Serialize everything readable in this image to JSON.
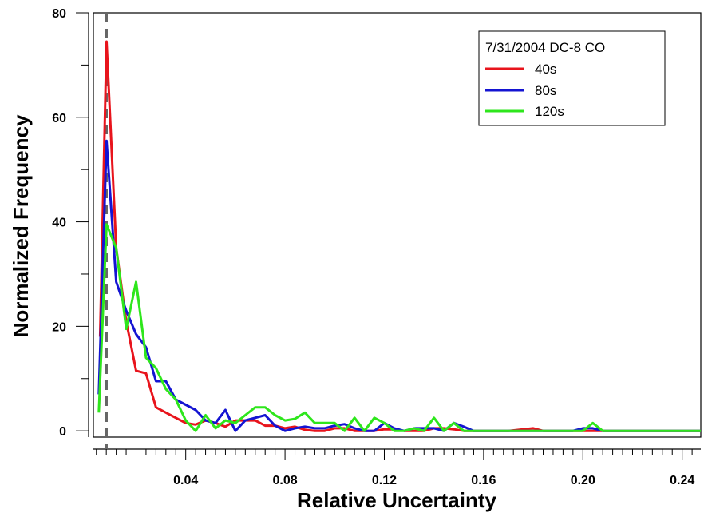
{
  "chart_data": {
    "type": "line",
    "xlabel": "Relative Uncertainty",
    "ylabel": "Normalized Frequency",
    "xlim": [
      0.0028,
      0.2475
    ],
    "ylim": [
      -1.2,
      80.0
    ],
    "x_ticks": [
      0.04,
      0.08,
      0.12,
      0.16,
      0.2,
      0.24
    ],
    "x_tick_labels": [
      "0.04",
      "0.08",
      "0.12",
      "0.16",
      "0.20",
      "0.24"
    ],
    "x_minor_step": 0.004,
    "y_ticks": [
      0,
      20,
      40,
      60,
      80
    ],
    "y_tick_labels": [
      "0",
      "20",
      "40",
      "60",
      "80"
    ],
    "y_minor_step": 10,
    "reference_line_x": 0.0081,
    "legend": {
      "title": "7/31/2004 DC-8 CO",
      "position": "top-right"
    },
    "series": [
      {
        "name": "40s",
        "color": "#e8141c",
        "x": [
          0.0055,
          0.0081,
          0.012,
          0.016,
          0.02,
          0.024,
          0.028,
          0.032,
          0.036,
          0.04,
          0.044,
          0.048,
          0.052,
          0.056,
          0.06,
          0.064,
          0.068,
          0.072,
          0.076,
          0.08,
          0.084,
          0.088,
          0.092,
          0.096,
          0.1,
          0.104,
          0.108,
          0.112,
          0.116,
          0.12,
          0.124,
          0.128,
          0.132,
          0.136,
          0.14,
          0.144,
          0.148,
          0.152,
          0.156,
          0.16,
          0.17,
          0.18,
          0.184,
          0.19,
          0.2,
          0.21,
          0.2475
        ],
        "values": [
          18,
          74.5,
          35,
          21,
          11.5,
          11,
          4.5,
          3.5,
          2.5,
          1.5,
          1.2,
          2.0,
          1.5,
          0.8,
          2.0,
          2.0,
          2.0,
          1.0,
          1.0,
          0.5,
          0.8,
          0.2,
          0.0,
          0.0,
          0.5,
          0.5,
          0.0,
          0.0,
          0.0,
          0.3,
          0.3,
          0.0,
          0.0,
          0.0,
          0.5,
          0.5,
          0.3,
          0.0,
          0.0,
          0.0,
          0.0,
          0.5,
          0.0,
          0.0,
          0.0,
          0.0,
          0.0
        ]
      },
      {
        "name": "80s",
        "color": "#1414d2",
        "x": [
          0.005,
          0.0081,
          0.012,
          0.016,
          0.02,
          0.024,
          0.028,
          0.032,
          0.036,
          0.04,
          0.044,
          0.048,
          0.052,
          0.056,
          0.06,
          0.064,
          0.068,
          0.072,
          0.076,
          0.08,
          0.084,
          0.088,
          0.092,
          0.096,
          0.1,
          0.104,
          0.108,
          0.112,
          0.116,
          0.12,
          0.124,
          0.128,
          0.132,
          0.136,
          0.14,
          0.144,
          0.148,
          0.152,
          0.156,
          0.16,
          0.18,
          0.196,
          0.2,
          0.204,
          0.208,
          0.212,
          0.2475
        ],
        "values": [
          7,
          55.5,
          28.5,
          23,
          18.5,
          16,
          9.5,
          9.5,
          6,
          5,
          4,
          2,
          1.5,
          4,
          0,
          2,
          2.5,
          3,
          1,
          0,
          0.5,
          0.8,
          0.5,
          0.5,
          1.0,
          1.3,
          0.5,
          0,
          0,
          1.5,
          0.5,
          0,
          0.5,
          0.5,
          0.5,
          0,
          1.5,
          0.8,
          0,
          0,
          0,
          0,
          0.5,
          0.5,
          0.0,
          0,
          0
        ]
      },
      {
        "name": "120s",
        "color": "#2ee61c",
        "x": [
          0.005,
          0.0081,
          0.012,
          0.016,
          0.02,
          0.024,
          0.028,
          0.032,
          0.036,
          0.04,
          0.044,
          0.048,
          0.052,
          0.056,
          0.06,
          0.064,
          0.068,
          0.072,
          0.076,
          0.08,
          0.084,
          0.088,
          0.092,
          0.096,
          0.1,
          0.104,
          0.108,
          0.112,
          0.116,
          0.12,
          0.124,
          0.128,
          0.132,
          0.136,
          0.14,
          0.144,
          0.148,
          0.152,
          0.156,
          0.16,
          0.2,
          0.204,
          0.208,
          0.212,
          0.2475
        ],
        "values": [
          3.5,
          39.5,
          35,
          19.5,
          28.5,
          14,
          12,
          8,
          6,
          2,
          0,
          3,
          0.5,
          2,
          1.5,
          3,
          4.5,
          4.5,
          3,
          2.0,
          2.3,
          3.5,
          1.5,
          1.5,
          1.5,
          0,
          2.5,
          0,
          2.5,
          1.5,
          0,
          0,
          0.5,
          0,
          2.5,
          0,
          1.5,
          0,
          0,
          0,
          0,
          1.5,
          0,
          0,
          0
        ]
      }
    ]
  }
}
